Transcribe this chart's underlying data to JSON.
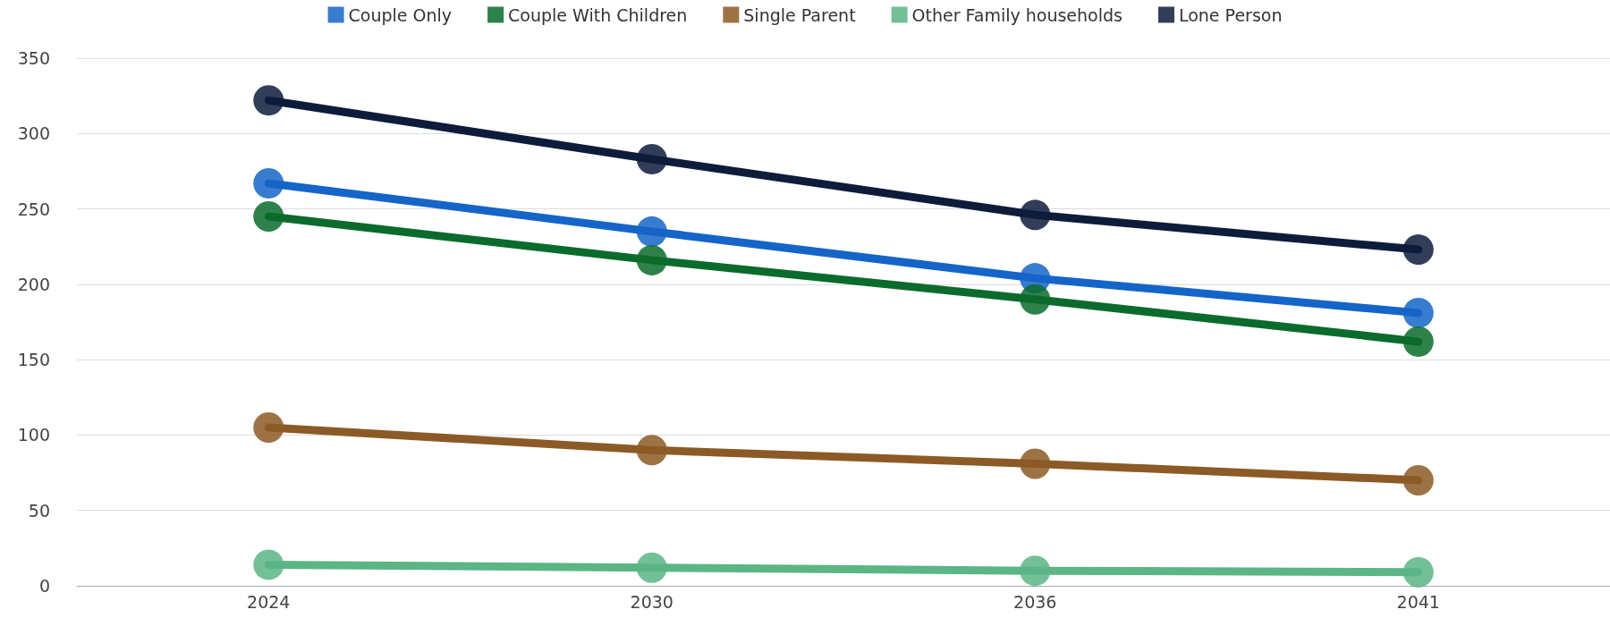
{
  "chart_data": {
    "type": "line",
    "categories": [
      "2024",
      "2030",
      "2036",
      "2041"
    ],
    "series": [
      {
        "name": "Couple Only",
        "color": "#1565c8",
        "values": [
          267,
          235,
          204,
          181
        ]
      },
      {
        "name": "Couple With Children",
        "color": "#0b6b2c",
        "values": [
          245,
          216,
          190,
          162
        ]
      },
      {
        "name": "Single Parent",
        "color": "#8c5a26",
        "values": [
          105,
          90,
          81,
          70
        ]
      },
      {
        "name": "Other Family households",
        "color": "#5bb585",
        "values": [
          14,
          12,
          10,
          9
        ]
      },
      {
        "name": "Lone Person",
        "color": "#0e1c3c",
        "values": [
          322,
          283,
          246,
          223
        ]
      }
    ],
    "ylim": [
      0,
      350
    ],
    "yticks": [
      0,
      50,
      100,
      150,
      200,
      250,
      300,
      350
    ],
    "grid": "y",
    "legend": "top",
    "marker": "circle",
    "line_style": "solid"
  }
}
